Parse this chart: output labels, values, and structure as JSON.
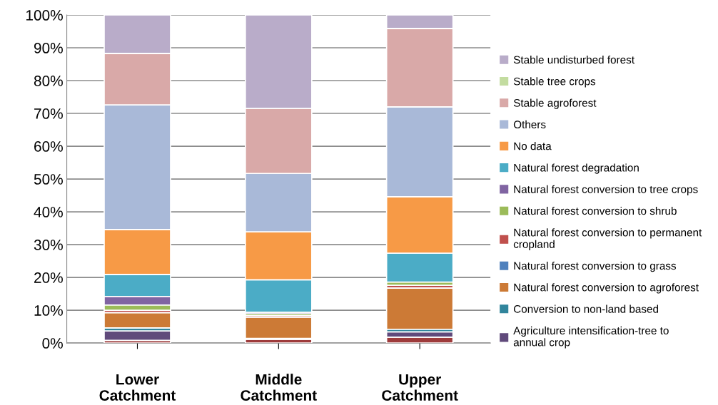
{
  "chart_data": {
    "type": "bar",
    "stacked": true,
    "categories": [
      "Lower\nCatchment",
      "Middle\nCatchment",
      "Upper\nCatchment"
    ],
    "series": [
      {
        "color": "#9e3b3b",
        "values": [
          0.8,
          1.1,
          1.8
        ]
      },
      {
        "name": "Agriculture intensification-tree to annual crop",
        "color": "#604a7b",
        "values": [
          2.9,
          0.3,
          1.6
        ]
      },
      {
        "name": "Conversion to non-land based",
        "color": "#31859c",
        "values": [
          0.9,
          null,
          0.8
        ]
      },
      {
        "name": "Natural forest conversion to agroforest",
        "color": "#cc7a36",
        "values": [
          4.7,
          6.4,
          12.6
        ]
      },
      {
        "name": "Natural forest conversion to grass",
        "color": "#4f81bd",
        "values": [
          0,
          0,
          0
        ]
      },
      {
        "name": "Natural forest conversion to permanent cropland",
        "color": "#c0504d",
        "values": [
          0.7,
          0.5,
          0.8
        ]
      },
      {
        "name": "Natural forest conversion to shrub",
        "color": "#9bbb59",
        "values": [
          1.6,
          0.6,
          1.0
        ]
      },
      {
        "name": "Natural forest conversion to tree crops",
        "color": "#8064a2",
        "values": [
          2.6,
          0.5,
          0
        ]
      },
      {
        "name": "Natural forest degradation",
        "color": "#4bacc6",
        "values": [
          6.7,
          9.9,
          8.8
        ]
      },
      {
        "name": "No data",
        "color": "#f79a46",
        "values": [
          13.7,
          14.6,
          17.2
        ]
      },
      {
        "name": "Others",
        "color": "#a9b9d8",
        "values": [
          38.0,
          17.8,
          27.4
        ]
      },
      {
        "name": "Stable agroforest",
        "color": "#d9a9a8",
        "values": [
          15.7,
          19.8,
          23.9
        ]
      },
      {
        "name": "Stable tree crops",
        "color": "#c3dca0",
        "values": [
          null,
          null,
          0
        ]
      },
      {
        "name": "Stable undisturbed forest",
        "color": "#b9acc9",
        "values": [
          11.7,
          28.5,
          4.1
        ]
      }
    ],
    "ylim": [
      0,
      100
    ],
    "yticks": [
      {
        "value": 0,
        "label": "0%"
      },
      {
        "value": 10,
        "label": "10%"
      },
      {
        "value": 20,
        "label": "20%"
      },
      {
        "value": 30,
        "label": "30%"
      },
      {
        "value": 40,
        "label": "40%"
      },
      {
        "value": 50,
        "label": "50%"
      },
      {
        "value": 60,
        "label": "60%"
      },
      {
        "value": 70,
        "label": "70%"
      },
      {
        "value": 80,
        "label": "80%"
      },
      {
        "value": 90,
        "label": "90%"
      },
      {
        "value": 100,
        "label": "100%"
      }
    ],
    "grid": "y",
    "legend": "right"
  }
}
